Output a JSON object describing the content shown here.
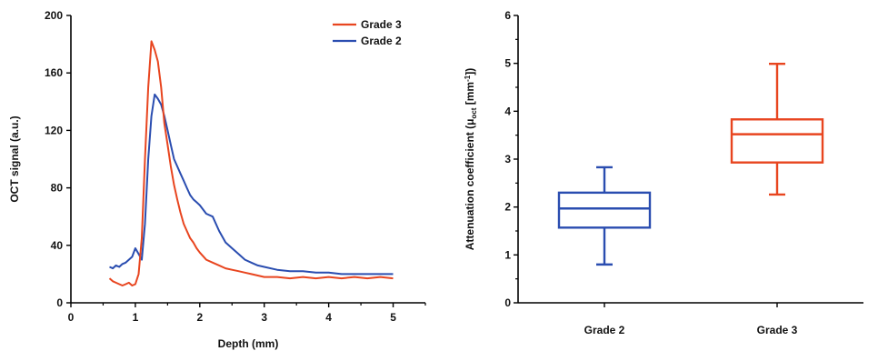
{
  "chart_data": [
    {
      "type": "line",
      "xlabel": "Depth (mm)",
      "ylabel": "OCT signal (a.u.)",
      "xlim": [
        0,
        5.5
      ],
      "ylim": [
        0,
        200
      ],
      "xticks": [
        0,
        1,
        2,
        3,
        4,
        5
      ],
      "yticks": [
        0,
        40,
        80,
        120,
        160,
        200
      ],
      "grid": false,
      "legend_position": "top-right",
      "series": [
        {
          "name": "Grade 3",
          "color": "#e8451f",
          "x": [
            0.6,
            0.65,
            0.7,
            0.75,
            0.8,
            0.85,
            0.9,
            0.95,
            1.0,
            1.05,
            1.1,
            1.15,
            1.2,
            1.25,
            1.3,
            1.35,
            1.4,
            1.45,
            1.5,
            1.55,
            1.6,
            1.65,
            1.7,
            1.75,
            1.8,
            1.85,
            1.9,
            1.95,
            2.0,
            2.1,
            2.2,
            2.3,
            2.4,
            2.5,
            2.6,
            2.7,
            2.8,
            2.9,
            3.0,
            3.2,
            3.4,
            3.6,
            3.8,
            4.0,
            4.2,
            4.4,
            4.6,
            4.8,
            5.0
          ],
          "y": [
            17,
            15,
            14,
            13,
            12,
            13,
            14,
            12,
            13,
            20,
            45,
            100,
            150,
            182,
            176,
            168,
            150,
            125,
            110,
            95,
            82,
            72,
            63,
            55,
            50,
            45,
            42,
            38,
            35,
            30,
            28,
            26,
            24,
            23,
            22,
            21,
            20,
            19,
            18,
            18,
            17,
            18,
            17,
            18,
            17,
            18,
            17,
            18,
            17
          ]
        },
        {
          "name": "Grade 2",
          "color": "#2a4db0",
          "x": [
            0.6,
            0.65,
            0.7,
            0.75,
            0.8,
            0.85,
            0.9,
            0.95,
            1.0,
            1.05,
            1.1,
            1.15,
            1.2,
            1.25,
            1.3,
            1.35,
            1.4,
            1.45,
            1.5,
            1.55,
            1.6,
            1.65,
            1.7,
            1.75,
            1.8,
            1.85,
            1.9,
            1.95,
            2.0,
            2.1,
            2.2,
            2.3,
            2.4,
            2.5,
            2.6,
            2.7,
            2.8,
            2.9,
            3.0,
            3.2,
            3.4,
            3.6,
            3.8,
            4.0,
            4.2,
            4.4,
            4.6,
            4.8,
            5.0
          ],
          "y": [
            25,
            24,
            26,
            25,
            27,
            28,
            30,
            32,
            38,
            34,
            30,
            55,
            100,
            130,
            145,
            142,
            138,
            130,
            120,
            110,
            100,
            95,
            90,
            85,
            80,
            75,
            72,
            70,
            68,
            62,
            60,
            50,
            42,
            38,
            34,
            30,
            28,
            26,
            25,
            23,
            22,
            22,
            21,
            21,
            20,
            20,
            20,
            20,
            20
          ]
        }
      ]
    },
    {
      "type": "box",
      "xlabel": "",
      "ylabel": "Attenuation coefficient (μoct [mm⁻¹])",
      "ylim": [
        0,
        6
      ],
      "yticks": [
        0,
        1,
        2,
        3,
        4,
        5,
        6
      ],
      "categories": [
        "Grade 2",
        "Grade 3"
      ],
      "boxes": [
        {
          "name": "Grade 2",
          "color": "#2a4db0",
          "min": 0.8,
          "q1": 1.57,
          "median": 1.97,
          "q3": 2.3,
          "max": 2.83
        },
        {
          "name": "Grade 3",
          "color": "#e8451f",
          "min": 2.26,
          "q1": 2.93,
          "median": 3.52,
          "q3": 3.83,
          "max": 4.99
        }
      ]
    }
  ]
}
